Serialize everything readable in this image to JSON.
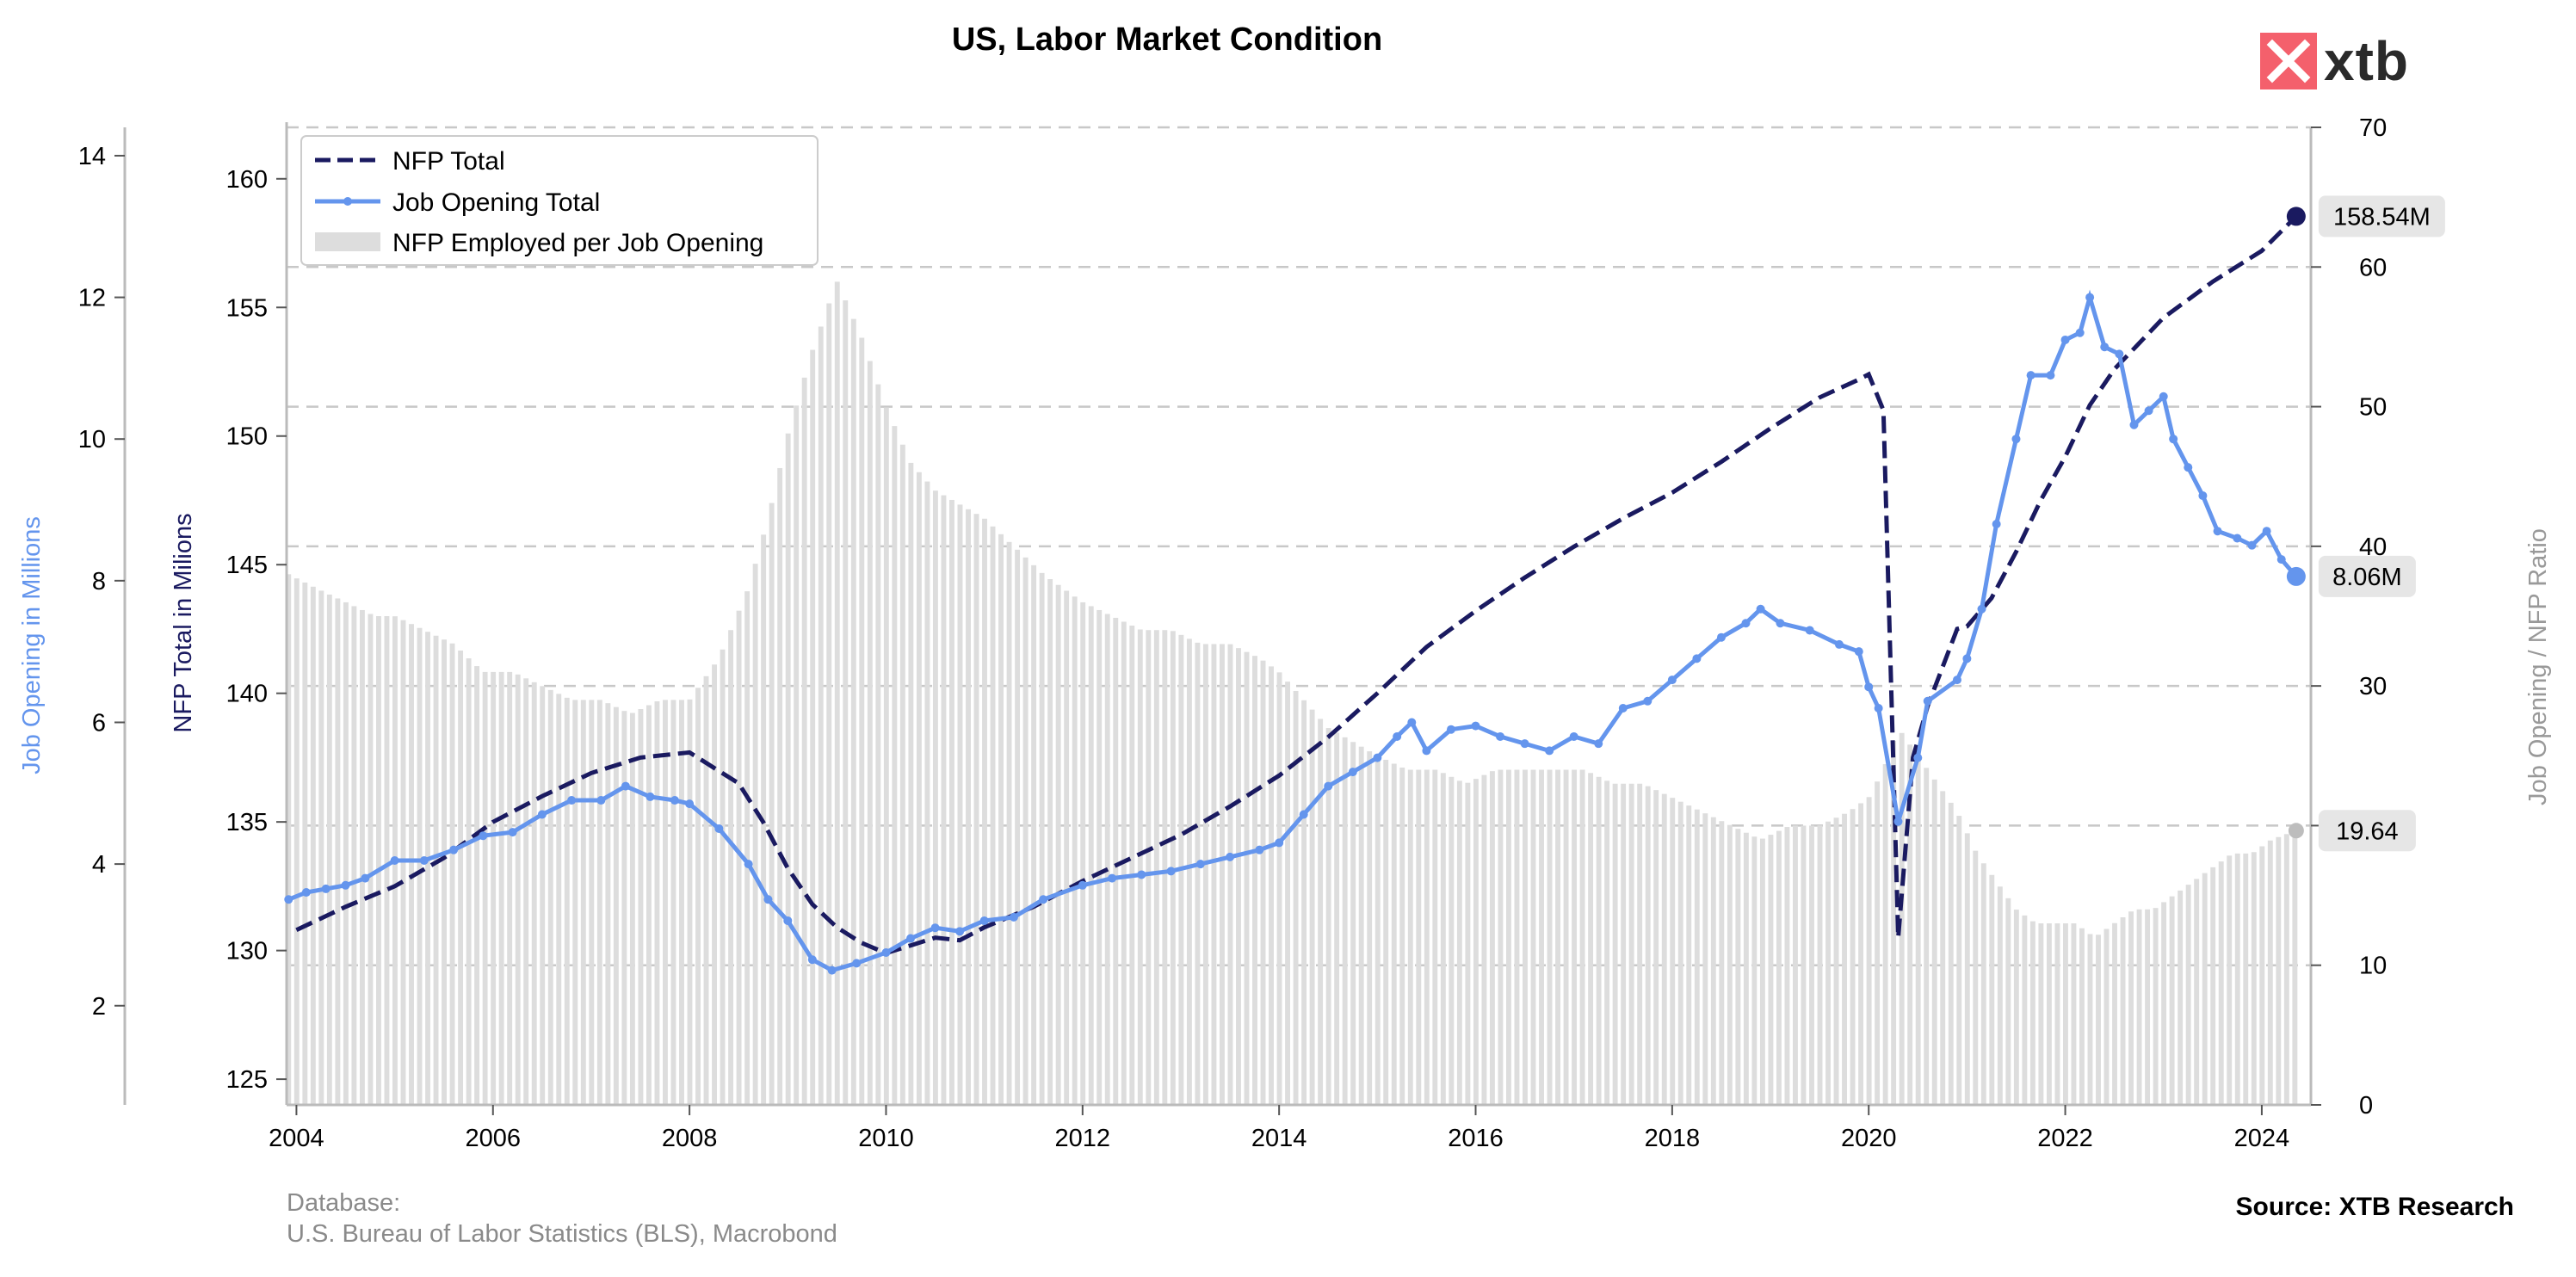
{
  "brand": {
    "name": "xtb",
    "color": "#f4606c"
  },
  "footer": {
    "database_label": "Database:",
    "database_value": "U.S. Bureau of Labor Statistics (BLS), Macrobond",
    "source": "Source: XTB Research"
  },
  "chart_data": {
    "type": "line",
    "title": "US, Labor Market Condition",
    "x_ticks": [
      "2004",
      "2006",
      "2008",
      "2010",
      "2012",
      "2014",
      "2016",
      "2018",
      "2020",
      "2022",
      "2024"
    ],
    "xlim": [
      2003.9,
      2024.5
    ],
    "axes": {
      "left_outer": {
        "label": "Job Opening in Millions",
        "ylim": [
          0.6,
          14.4
        ],
        "ticks": [
          "2",
          "4",
          "6",
          "8",
          "10",
          "12",
          "14"
        ],
        "color": "#6495ed"
      },
      "left_inner": {
        "label": "NFP Total in Milions",
        "ylim": [
          124,
          162
        ],
        "ticks": [
          "125",
          "130",
          "135",
          "140",
          "145",
          "150",
          "155",
          "160"
        ],
        "color": "#1a1a60"
      },
      "right": {
        "label": "Job Opening / NFP Ratio",
        "ylim": [
          0,
          70
        ],
        "ticks": [
          "0",
          "10",
          "20",
          "30",
          "40",
          "50",
          "60",
          "70"
        ],
        "color": "#999999"
      }
    },
    "grid": "horizontal-dashed",
    "legend": {
      "placement": "top-left",
      "entries": [
        "NFP Total",
        "Job Opening Total",
        "NFP Employed per Job Opening"
      ]
    },
    "series": [
      {
        "name": "NFP Total",
        "axis": "left_inner",
        "style": "dashed",
        "color": "#1a1a60",
        "points": [
          [
            2004.0,
            130.8
          ],
          [
            2004.5,
            131.7
          ],
          [
            2005.0,
            132.5
          ],
          [
            2005.5,
            133.6
          ],
          [
            2006.0,
            135.0
          ],
          [
            2006.5,
            136.0
          ],
          [
            2007.0,
            136.9
          ],
          [
            2007.5,
            137.5
          ],
          [
            2008.0,
            137.7
          ],
          [
            2008.5,
            136.5
          ],
          [
            2008.75,
            135.0
          ],
          [
            2009.0,
            133.2
          ],
          [
            2009.25,
            131.8
          ],
          [
            2009.5,
            130.9
          ],
          [
            2009.75,
            130.3
          ],
          [
            2010.0,
            129.9
          ],
          [
            2010.25,
            130.2
          ],
          [
            2010.5,
            130.5
          ],
          [
            2010.75,
            130.4
          ],
          [
            2011.0,
            130.9
          ],
          [
            2011.5,
            131.7
          ],
          [
            2012.0,
            132.7
          ],
          [
            2012.5,
            133.6
          ],
          [
            2013.0,
            134.5
          ],
          [
            2013.5,
            135.6
          ],
          [
            2014.0,
            136.8
          ],
          [
            2014.5,
            138.3
          ],
          [
            2015.0,
            140.0
          ],
          [
            2015.5,
            141.8
          ],
          [
            2016.0,
            143.2
          ],
          [
            2016.5,
            144.5
          ],
          [
            2017.0,
            145.7
          ],
          [
            2017.5,
            146.8
          ],
          [
            2018.0,
            147.8
          ],
          [
            2018.5,
            149.0
          ],
          [
            2019.0,
            150.3
          ],
          [
            2019.5,
            151.5
          ],
          [
            2019.9,
            152.2
          ],
          [
            2020.0,
            152.4
          ],
          [
            2020.15,
            151.0
          ],
          [
            2020.3,
            130.5
          ],
          [
            2020.45,
            137.5
          ],
          [
            2020.6,
            139.5
          ],
          [
            2020.9,
            142.5
          ],
          [
            2021.0,
            142.6
          ],
          [
            2021.25,
            143.7
          ],
          [
            2021.5,
            145.5
          ],
          [
            2021.75,
            147.5
          ],
          [
            2022.0,
            149.2
          ],
          [
            2022.25,
            151.2
          ],
          [
            2022.5,
            152.6
          ],
          [
            2022.75,
            153.6
          ],
          [
            2023.0,
            154.6
          ],
          [
            2023.5,
            156.0
          ],
          [
            2024.0,
            157.2
          ],
          [
            2024.35,
            158.54
          ]
        ]
      },
      {
        "name": "Job Opening Total",
        "axis": "left_outer",
        "style": "solid-markers",
        "color": "#6495ed",
        "points": [
          [
            2003.92,
            3.5
          ],
          [
            2004.1,
            3.6
          ],
          [
            2004.3,
            3.65
          ],
          [
            2004.5,
            3.7
          ],
          [
            2004.7,
            3.8
          ],
          [
            2005.0,
            4.05
          ],
          [
            2005.3,
            4.05
          ],
          [
            2005.6,
            4.2
          ],
          [
            2005.9,
            4.4
          ],
          [
            2006.2,
            4.45
          ],
          [
            2006.5,
            4.7
          ],
          [
            2006.8,
            4.9
          ],
          [
            2007.1,
            4.9
          ],
          [
            2007.35,
            5.1
          ],
          [
            2007.6,
            4.95
          ],
          [
            2007.85,
            4.9
          ],
          [
            2008.0,
            4.85
          ],
          [
            2008.3,
            4.5
          ],
          [
            2008.6,
            4.0
          ],
          [
            2008.8,
            3.5
          ],
          [
            2009.0,
            3.2
          ],
          [
            2009.25,
            2.65
          ],
          [
            2009.45,
            2.5
          ],
          [
            2009.7,
            2.6
          ],
          [
            2010.0,
            2.75
          ],
          [
            2010.25,
            2.95
          ],
          [
            2010.5,
            3.1
          ],
          [
            2010.75,
            3.05
          ],
          [
            2011.0,
            3.2
          ],
          [
            2011.3,
            3.25
          ],
          [
            2011.6,
            3.5
          ],
          [
            2012.0,
            3.7
          ],
          [
            2012.3,
            3.8
          ],
          [
            2012.6,
            3.85
          ],
          [
            2012.9,
            3.9
          ],
          [
            2013.2,
            4.0
          ],
          [
            2013.5,
            4.1
          ],
          [
            2013.8,
            4.2
          ],
          [
            2014.0,
            4.3
          ],
          [
            2014.25,
            4.7
          ],
          [
            2014.5,
            5.1
          ],
          [
            2014.75,
            5.3
          ],
          [
            2015.0,
            5.5
          ],
          [
            2015.2,
            5.8
          ],
          [
            2015.35,
            6.0
          ],
          [
            2015.5,
            5.6
          ],
          [
            2015.75,
            5.9
          ],
          [
            2016.0,
            5.95
          ],
          [
            2016.25,
            5.8
          ],
          [
            2016.5,
            5.7
          ],
          [
            2016.75,
            5.6
          ],
          [
            2017.0,
            5.8
          ],
          [
            2017.25,
            5.7
          ],
          [
            2017.5,
            6.2
          ],
          [
            2017.75,
            6.3
          ],
          [
            2018.0,
            6.6
          ],
          [
            2018.25,
            6.9
          ],
          [
            2018.5,
            7.2
          ],
          [
            2018.75,
            7.4
          ],
          [
            2018.9,
            7.6
          ],
          [
            2019.1,
            7.4
          ],
          [
            2019.4,
            7.3
          ],
          [
            2019.7,
            7.1
          ],
          [
            2019.9,
            7.0
          ],
          [
            2020.0,
            6.5
          ],
          [
            2020.1,
            6.2
          ],
          [
            2020.3,
            4.6
          ],
          [
            2020.5,
            5.5
          ],
          [
            2020.6,
            6.3
          ],
          [
            2020.9,
            6.6
          ],
          [
            2021.0,
            6.9
          ],
          [
            2021.15,
            7.6
          ],
          [
            2021.3,
            8.8
          ],
          [
            2021.5,
            10.0
          ],
          [
            2021.65,
            10.9
          ],
          [
            2021.85,
            10.9
          ],
          [
            2022.0,
            11.4
          ],
          [
            2022.15,
            11.5
          ],
          [
            2022.25,
            12.0
          ],
          [
            2022.4,
            11.3
          ],
          [
            2022.55,
            11.2
          ],
          [
            2022.7,
            10.2
          ],
          [
            2022.85,
            10.4
          ],
          [
            2023.0,
            10.6
          ],
          [
            2023.1,
            10.0
          ],
          [
            2023.25,
            9.6
          ],
          [
            2023.4,
            9.2
          ],
          [
            2023.55,
            8.7
          ],
          [
            2023.75,
            8.6
          ],
          [
            2023.9,
            8.5
          ],
          [
            2024.05,
            8.7
          ],
          [
            2024.2,
            8.3
          ],
          [
            2024.35,
            8.06
          ]
        ]
      },
      {
        "name": "NFP Employed per Job Opening",
        "axis": "right",
        "style": "bar",
        "color": "#dddddd",
        "points": [
          [
            2003.92,
            38
          ],
          [
            2004.2,
            37
          ],
          [
            2004.5,
            36
          ],
          [
            2004.8,
            35
          ],
          [
            2005.0,
            35
          ],
          [
            2005.3,
            34
          ],
          [
            2005.6,
            33
          ],
          [
            2005.9,
            31
          ],
          [
            2006.2,
            31
          ],
          [
            2006.5,
            30
          ],
          [
            2006.8,
            29
          ],
          [
            2007.1,
            29
          ],
          [
            2007.4,
            28
          ],
          [
            2007.7,
            29
          ],
          [
            2008.0,
            29
          ],
          [
            2008.3,
            32
          ],
          [
            2008.6,
            37
          ],
          [
            2008.8,
            42
          ],
          [
            2009.0,
            48
          ],
          [
            2009.25,
            54
          ],
          [
            2009.5,
            59
          ],
          [
            2009.75,
            55
          ],
          [
            2010.0,
            50
          ],
          [
            2010.25,
            46
          ],
          [
            2010.5,
            44
          ],
          [
            2010.75,
            43
          ],
          [
            2011.0,
            42
          ],
          [
            2011.3,
            40
          ],
          [
            2011.6,
            38
          ],
          [
            2012.0,
            36
          ],
          [
            2012.3,
            35
          ],
          [
            2012.6,
            34
          ],
          [
            2012.9,
            34
          ],
          [
            2013.2,
            33
          ],
          [
            2013.5,
            33
          ],
          [
            2013.8,
            32
          ],
          [
            2014.0,
            31
          ],
          [
            2014.25,
            29
          ],
          [
            2014.5,
            27
          ],
          [
            2014.75,
            26
          ],
          [
            2015.0,
            25
          ],
          [
            2015.3,
            24
          ],
          [
            2015.6,
            24
          ],
          [
            2015.9,
            23
          ],
          [
            2016.2,
            24
          ],
          [
            2016.5,
            24
          ],
          [
            2016.8,
            24
          ],
          [
            2017.1,
            24
          ],
          [
            2017.4,
            23
          ],
          [
            2017.7,
            23
          ],
          [
            2018.0,
            22
          ],
          [
            2018.3,
            21
          ],
          [
            2018.6,
            20
          ],
          [
            2018.9,
            19
          ],
          [
            2019.2,
            20
          ],
          [
            2019.5,
            20
          ],
          [
            2019.8,
            21
          ],
          [
            2020.0,
            22
          ],
          [
            2020.15,
            24
          ],
          [
            2020.3,
            27
          ],
          [
            2020.5,
            25
          ],
          [
            2020.7,
            23
          ],
          [
            2020.9,
            21
          ],
          [
            2021.1,
            18
          ],
          [
            2021.3,
            16
          ],
          [
            2021.5,
            14
          ],
          [
            2021.7,
            13
          ],
          [
            2021.9,
            13
          ],
          [
            2022.1,
            13
          ],
          [
            2022.3,
            12
          ],
          [
            2022.5,
            13
          ],
          [
            2022.7,
            14
          ],
          [
            2022.9,
            14
          ],
          [
            2023.1,
            15
          ],
          [
            2023.3,
            16
          ],
          [
            2023.5,
            17
          ],
          [
            2023.7,
            18
          ],
          [
            2023.9,
            18
          ],
          [
            2024.1,
            19
          ],
          [
            2024.35,
            19.64
          ]
        ]
      }
    ],
    "end_labels": [
      {
        "text": "158.54M",
        "series": "NFP Total"
      },
      {
        "text": "8.06M",
        "series": "Job Opening Total"
      },
      {
        "text": "19.64",
        "series": "NFP Employed per Job Opening"
      }
    ],
    "reference_lines_right_axis": [
      10,
      20,
      30,
      40,
      50,
      60,
      70
    ]
  }
}
